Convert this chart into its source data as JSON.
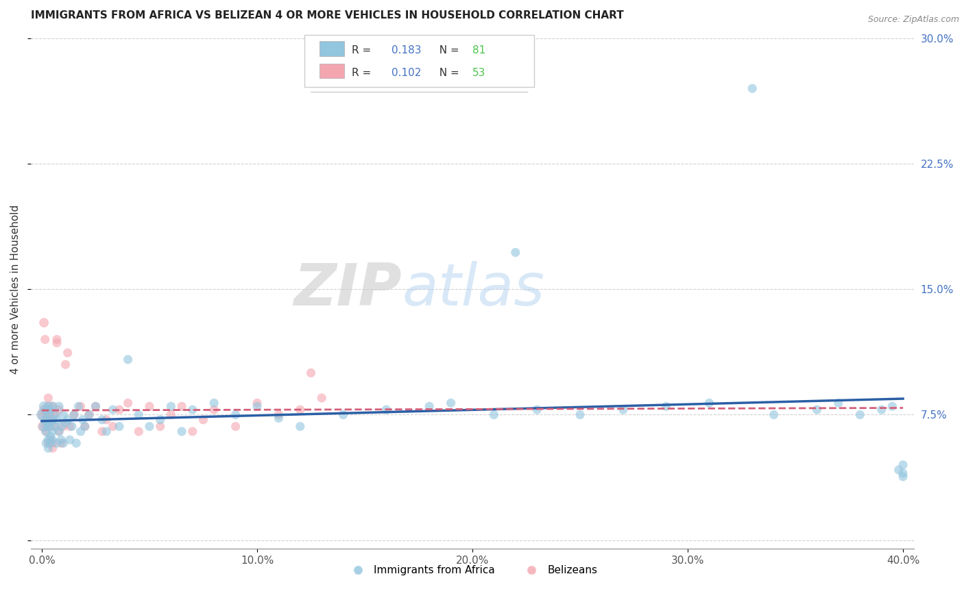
{
  "title": "IMMIGRANTS FROM AFRICA VS BELIZEAN 4 OR MORE VEHICLES IN HOUSEHOLD CORRELATION CHART",
  "source": "Source: ZipAtlas.com",
  "ylabel": "4 or more Vehicles in Household",
  "xlim": [
    -0.005,
    0.405
  ],
  "ylim": [
    -0.005,
    0.305
  ],
  "xticks": [
    0.0,
    0.1,
    0.2,
    0.3,
    0.4
  ],
  "xticklabels": [
    "0.0%",
    "10.0%",
    "20.0%",
    "30.0%",
    "40.0%"
  ],
  "yticks": [
    0.0,
    0.075,
    0.15,
    0.225,
    0.3
  ],
  "yticklabels_right": [
    "",
    "7.5%",
    "15.0%",
    "22.5%",
    "30.0%"
  ],
  "legend_r1": "R = 0.183",
  "legend_n1": "N = 81",
  "legend_r2": "R = 0.102",
  "legend_n2": "N = 53",
  "blue_color": "#92c5de",
  "pink_color": "#f4a6b0",
  "blue_line_color": "#2b5fa5",
  "pink_line_color": "#d45f7a",
  "watermark_zip": "ZIP",
  "watermark_atlas": "atlas",
  "legend_label1": "Immigrants from Africa",
  "legend_label2": "Belizeans",
  "blue_scatter_x": [
    0.0005,
    0.001,
    0.001,
    0.0015,
    0.002,
    0.002,
    0.002,
    0.0025,
    0.003,
    0.003,
    0.003,
    0.003,
    0.003,
    0.004,
    0.004,
    0.004,
    0.004,
    0.005,
    0.005,
    0.005,
    0.005,
    0.006,
    0.006,
    0.007,
    0.007,
    0.008,
    0.008,
    0.009,
    0.009,
    0.01,
    0.01,
    0.011,
    0.012,
    0.013,
    0.014,
    0.015,
    0.016,
    0.017,
    0.018,
    0.019,
    0.02,
    0.022,
    0.025,
    0.028,
    0.03,
    0.033,
    0.036,
    0.04,
    0.045,
    0.05,
    0.055,
    0.06,
    0.065,
    0.07,
    0.08,
    0.09,
    0.1,
    0.11,
    0.12,
    0.14,
    0.16,
    0.18,
    0.19,
    0.21,
    0.22,
    0.23,
    0.25,
    0.27,
    0.29,
    0.31,
    0.33,
    0.34,
    0.36,
    0.37,
    0.38,
    0.39,
    0.395,
    0.398,
    0.4,
    0.4,
    0.4
  ],
  "blue_scatter_y": [
    0.075,
    0.068,
    0.08,
    0.072,
    0.058,
    0.078,
    0.065,
    0.07,
    0.055,
    0.06,
    0.068,
    0.075,
    0.08,
    0.062,
    0.07,
    0.058,
    0.078,
    0.065,
    0.072,
    0.06,
    0.08,
    0.068,
    0.075,
    0.058,
    0.072,
    0.065,
    0.08,
    0.06,
    0.068,
    0.075,
    0.058,
    0.07,
    0.072,
    0.06,
    0.068,
    0.075,
    0.058,
    0.08,
    0.065,
    0.072,
    0.068,
    0.075,
    0.08,
    0.072,
    0.065,
    0.078,
    0.068,
    0.108,
    0.075,
    0.068,
    0.072,
    0.08,
    0.065,
    0.078,
    0.082,
    0.075,
    0.08,
    0.073,
    0.068,
    0.075,
    0.078,
    0.08,
    0.082,
    0.075,
    0.172,
    0.078,
    0.075,
    0.078,
    0.08,
    0.082,
    0.27,
    0.075,
    0.078,
    0.082,
    0.075,
    0.078,
    0.08,
    0.042,
    0.04,
    0.038,
    0.045
  ],
  "blue_scatter_sizes": [
    180,
    120,
    110,
    100,
    90,
    100,
    100,
    90,
    90,
    100,
    90,
    90,
    100,
    90,
    100,
    90,
    90,
    90,
    90,
    90,
    100,
    90,
    90,
    90,
    90,
    90,
    90,
    90,
    90,
    90,
    90,
    90,
    90,
    90,
    90,
    90,
    90,
    90,
    90,
    90,
    90,
    90,
    90,
    90,
    90,
    90,
    90,
    90,
    90,
    90,
    90,
    90,
    90,
    90,
    90,
    90,
    90,
    90,
    90,
    90,
    90,
    90,
    90,
    90,
    90,
    90,
    90,
    90,
    90,
    90,
    90,
    90,
    90,
    90,
    90,
    90,
    90,
    90,
    90,
    90,
    90
  ],
  "pink_scatter_x": [
    0.0003,
    0.0005,
    0.001,
    0.001,
    0.0015,
    0.002,
    0.002,
    0.002,
    0.003,
    0.003,
    0.003,
    0.003,
    0.004,
    0.004,
    0.004,
    0.005,
    0.005,
    0.005,
    0.006,
    0.006,
    0.007,
    0.007,
    0.008,
    0.008,
    0.009,
    0.01,
    0.011,
    0.012,
    0.013,
    0.015,
    0.018,
    0.02,
    0.022,
    0.025,
    0.028,
    0.03,
    0.033,
    0.036,
    0.04,
    0.045,
    0.05,
    0.055,
    0.06,
    0.065,
    0.07,
    0.075,
    0.08,
    0.09,
    0.1,
    0.11,
    0.12,
    0.125,
    0.13
  ],
  "pink_scatter_y": [
    0.075,
    0.068,
    0.13,
    0.078,
    0.12,
    0.068,
    0.075,
    0.065,
    0.058,
    0.08,
    0.085,
    0.072,
    0.06,
    0.068,
    0.075,
    0.058,
    0.08,
    0.055,
    0.075,
    0.068,
    0.118,
    0.12,
    0.078,
    0.065,
    0.058,
    0.068,
    0.105,
    0.112,
    0.068,
    0.075,
    0.08,
    0.068,
    0.075,
    0.08,
    0.065,
    0.072,
    0.068,
    0.078,
    0.082,
    0.065,
    0.08,
    0.068,
    0.075,
    0.08,
    0.065,
    0.072,
    0.078,
    0.068,
    0.082,
    0.075,
    0.078,
    0.1,
    0.085
  ],
  "pink_scatter_sizes": [
    120,
    120,
    100,
    100,
    90,
    100,
    90,
    90,
    90,
    100,
    90,
    100,
    90,
    90,
    90,
    90,
    90,
    90,
    90,
    90,
    90,
    90,
    90,
    90,
    90,
    90,
    90,
    90,
    90,
    90,
    90,
    90,
    90,
    90,
    90,
    90,
    90,
    90,
    90,
    90,
    90,
    90,
    90,
    90,
    90,
    90,
    90,
    90,
    90,
    90,
    90,
    90,
    90
  ]
}
